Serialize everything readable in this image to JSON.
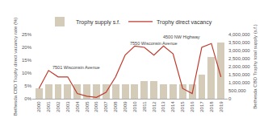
{
  "chart_data": {
    "type": "bar",
    "x": [
      2000,
      2001,
      2002,
      2003,
      2004,
      2005,
      2006,
      2007,
      2008,
      2009,
      2010,
      2011,
      2012,
      2013,
      2014,
      2015,
      2016,
      2017,
      2018,
      2019
    ],
    "series": [
      {
        "name": "Trophy supply s.f.",
        "type": "bar",
        "axis": "y2",
        "color": "#d4cbb8",
        "values": [
          650000,
          900000,
          900000,
          900000,
          900000,
          900000,
          900000,
          900000,
          900000,
          900000,
          900000,
          1100000,
          1100000,
          900000,
          900000,
          900000,
          900000,
          1500000,
          2600000,
          3500000
        ]
      },
      {
        "name": "Trophy direct vacancy",
        "type": "line",
        "color": "#c0392b",
        "values": [
          4.0,
          11.0,
          8.5,
          8.5,
          2.0,
          1.0,
          0.5,
          2.5,
          8.5,
          17.0,
          20.5,
          20.0,
          17.0,
          20.5,
          17.5,
          4.0,
          2.0,
          20.0,
          21.5,
          8.5
        ]
      }
    ],
    "xlim": [
      1999.3,
      2019.7
    ],
    "xticks": [
      2000,
      2001,
      2002,
      2003,
      2004,
      2005,
      2006,
      2007,
      2008,
      2009,
      2010,
      2011,
      2012,
      2013,
      2014,
      2015,
      2016,
      2017,
      2018,
      2019
    ],
    "ylim": [
      0,
      25
    ],
    "yticks": [
      {
        "value": 0,
        "label": "0%"
      },
      {
        "value": 5,
        "label": "5%"
      },
      {
        "value": 10,
        "label": "10%"
      },
      {
        "value": 15,
        "label": "15%"
      },
      {
        "value": 20,
        "label": "20%"
      },
      {
        "value": 25,
        "label": "25%"
      }
    ],
    "y2lim": [
      0,
      4000000
    ],
    "y2ticks": [
      0,
      {
        "value": 500000,
        "label": "500,000"
      },
      {
        "value": 1000000,
        "label": "1,000,000"
      },
      {
        "value": 1500000,
        "label": "1,500,000"
      },
      {
        "value": 2000000,
        "label": "2,000,000"
      },
      {
        "value": 2500000,
        "label": "2,500,000"
      },
      {
        "value": 3000000,
        "label": "3,000,000"
      },
      {
        "value": 3500000,
        "label": "3,500,000"
      },
      {
        "value": 4000000,
        "label": "4,000,000"
      }
    ],
    "ylabel": "Bethesda CBD Trophy direct vacancy rate (%)",
    "y2label": "Bethesda CBD Trophy total supply (s.f.)",
    "annotations": [
      {
        "text": "7501 Wisconsin Avenue",
        "x": 2001.2,
        "y": 10.5
      },
      {
        "text": "7550 Wisconsin Avenue",
        "x": 2009.3,
        "y": 20.0
      },
      {
        "text": "4500 NW Highway",
        "x": 2012.8,
        "y": 20.0
      }
    ],
    "grid": false,
    "legend": "top"
  }
}
